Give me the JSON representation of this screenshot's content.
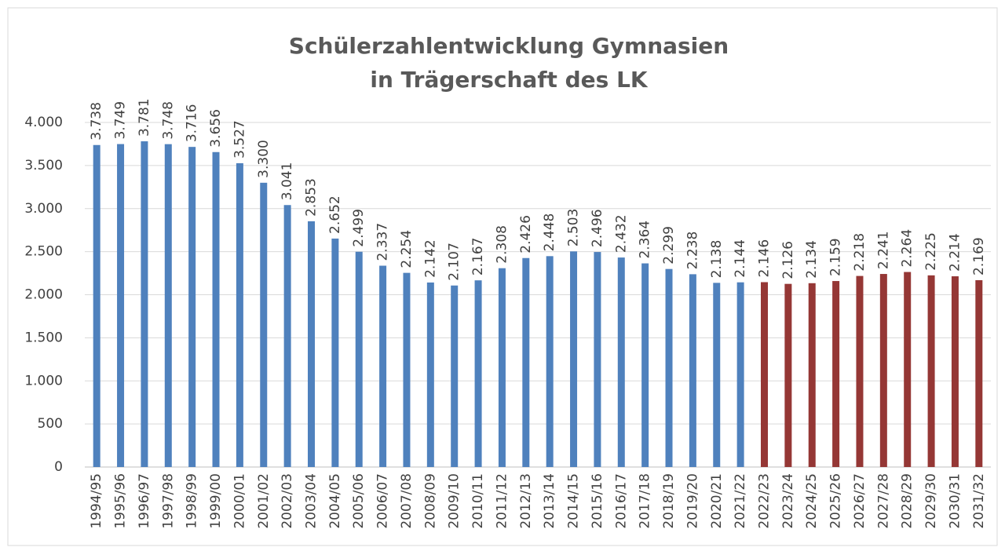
{
  "chart_data": {
    "type": "bar",
    "title": [
      "Schülerzahlentwicklung Gymnasien",
      "in Trägerschaft des LK"
    ],
    "categories": [
      "1994/95",
      "1995/96",
      "1996/97",
      "1997/98",
      "1998/99",
      "1999/00",
      "2000/01",
      "2001/02",
      "2002/03",
      "2003/04",
      "2004/05",
      "2005/06",
      "2006/07",
      "2007/08",
      "2008/09",
      "2009/10",
      "2010/11",
      "2011/12",
      "2012/13",
      "2013/14",
      "2014/15",
      "2015/16",
      "2016/17",
      "2017/18",
      "2018/19",
      "2019/20",
      "2020/21",
      "2021/22",
      "2022/23",
      "2023/24",
      "2024/25",
      "2025/26",
      "2026/27",
      "2027/28",
      "2028/29",
      "2029/30",
      "2030/31",
      "2031/32"
    ],
    "values": [
      3738,
      3749,
      3781,
      3748,
      3716,
      3656,
      3527,
      3300,
      3041,
      2853,
      2652,
      2499,
      2337,
      2254,
      2142,
      2107,
      2167,
      2308,
      2426,
      2448,
      2503,
      2496,
      2432,
      2364,
      2299,
      2238,
      2138,
      2144,
      2146,
      2126,
      2134,
      2159,
      2218,
      2241,
      2264,
      2225,
      2214,
      2169
    ],
    "value_labels": [
      "3.738",
      "3.749",
      "3.781",
      "3.748",
      "3.716",
      "3.656",
      "3.527",
      "3.300",
      "3.041",
      "2.853",
      "2.652",
      "2.499",
      "2.337",
      "2.254",
      "2.142",
      "2.107",
      "2.167",
      "2.308",
      "2.426",
      "2.448",
      "2.503",
      "2.496",
      "2.432",
      "2.364",
      "2.299",
      "2.238",
      "2.138",
      "2.144",
      "2.146",
      "2.126",
      "2.134",
      "2.159",
      "2.218",
      "2.241",
      "2.264",
      "2.225",
      "2.214",
      "2.169"
    ],
    "colors": [
      "#4f81bd",
      "#4f81bd",
      "#4f81bd",
      "#4f81bd",
      "#4f81bd",
      "#4f81bd",
      "#4f81bd",
      "#4f81bd",
      "#4f81bd",
      "#4f81bd",
      "#4f81bd",
      "#4f81bd",
      "#4f81bd",
      "#4f81bd",
      "#4f81bd",
      "#4f81bd",
      "#4f81bd",
      "#4f81bd",
      "#4f81bd",
      "#4f81bd",
      "#4f81bd",
      "#4f81bd",
      "#4f81bd",
      "#4f81bd",
      "#4f81bd",
      "#4f81bd",
      "#4f81bd",
      "#4f81bd",
      "#953735",
      "#953735",
      "#953735",
      "#953735",
      "#953735",
      "#953735",
      "#953735",
      "#953735",
      "#953735",
      "#953735"
    ],
    "ylim": [
      0,
      4000
    ],
    "yticks": [
      0,
      500,
      {
        "value": 1000,
        "label": "1.000"
      },
      {
        "value": 1500,
        "label": "1.500"
      },
      {
        "value": 2000,
        "label": "2.000"
      },
      {
        "value": 2500,
        "label": "2.500"
      },
      {
        "value": 3000,
        "label": "3.000"
      },
      {
        "value": 3500,
        "label": "3.500"
      },
      {
        "value": 4000,
        "label": "4.000"
      }
    ],
    "grid": true
  }
}
